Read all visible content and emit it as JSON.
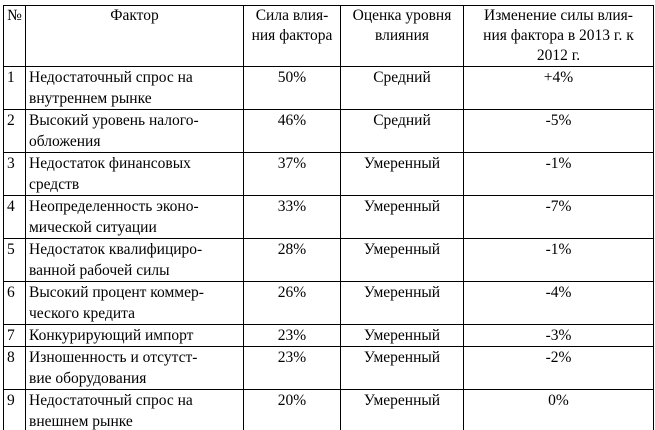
{
  "table": {
    "headers": {
      "num": "№",
      "factor": "Фактор",
      "force": [
        "Сила влия-",
        "ния фактора"
      ],
      "level": [
        "Оценка уровня",
        "влияния"
      ],
      "change": [
        "Изменение силы влия-",
        "ния фактора в 2013 г. к",
        "2012 г."
      ]
    },
    "rows": [
      {
        "num": "1",
        "factor": [
          "Недостаточный спрос на",
          "внутреннем рынке"
        ],
        "force": "50%",
        "level": "Средний",
        "change": "+4%"
      },
      {
        "num": "2",
        "factor": [
          "Высокий уровень налого-",
          "обложения"
        ],
        "force": "46%",
        "level": "Средний",
        "change": "-5%"
      },
      {
        "num": "3",
        "factor": [
          "Недостаток финансовых",
          "средств"
        ],
        "force": "37%",
        "level": "Умеренный",
        "change": "-1%"
      },
      {
        "num": "4",
        "factor": [
          "Неопределенность эконо-",
          "мической ситуации"
        ],
        "force": "33%",
        "level": "Умеренный",
        "change": "-7%"
      },
      {
        "num": "5",
        "factor": [
          "Недостаток квалифициро-",
          "ванной рабочей силы"
        ],
        "force": "28%",
        "level": "Умеренный",
        "change": "-1%"
      },
      {
        "num": "6",
        "factor": [
          "Высокий процент коммер-",
          "ческого кредита"
        ],
        "force": "26%",
        "level": "Умеренный",
        "change": "-4%"
      },
      {
        "num": "7",
        "factor": [
          "Конкурирующий импорт"
        ],
        "force": "23%",
        "level": "Умеренный",
        "change": "-3%"
      },
      {
        "num": "8",
        "factor": [
          "Изношенность и отсутст-",
          "вие оборудования"
        ],
        "force": "23%",
        "level": "Умеренный",
        "change": "-2%"
      },
      {
        "num": "9",
        "factor": [
          "Недостаточный спрос на",
          "внешнем рынке"
        ],
        "force": "20%",
        "level": "Умеренный",
        "change": "0%"
      }
    ]
  }
}
